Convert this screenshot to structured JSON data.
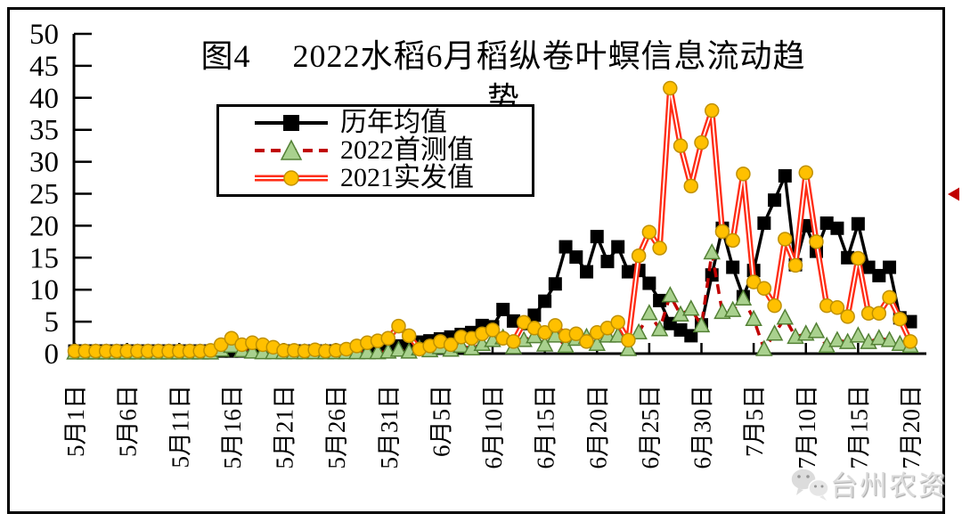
{
  "figure": {
    "title_line1": "图4　 2022水稻6月稻纵卷叶螟信息流动趋",
    "title_line2": "势"
  },
  "watermark": {
    "text": "台州农资",
    "icon": "wechat-icon"
  },
  "annotations": {
    "right_edge_marker": "red left-pointing arrow at right border, value level ~25"
  },
  "chart_data": {
    "type": "line",
    "title": "图4 2022水稻6月稻纵卷叶螟信息流动趋势",
    "x_unit": "date (daily points, 5月1日 — 7月20日)",
    "ylim": [
      0,
      50
    ],
    "y_ticks": [
      0,
      5,
      10,
      15,
      20,
      25,
      30,
      35,
      40,
      45,
      50
    ],
    "x_tick_labels": [
      "5月1日",
      "5月6日",
      "5月11日",
      "5月16日",
      "5月21日",
      "5月26日",
      "5月31日",
      "6月5日",
      "6月10日",
      "6月15日",
      "6月20日",
      "6月25日",
      "6月30日",
      "7月5日",
      "7月10日",
      "7月15日",
      "7月20日"
    ],
    "grid": false,
    "legend_position": "upper-left-inside",
    "series": [
      {
        "name": "历年均值",
        "color": "#000000",
        "line": "solid",
        "marker": "square",
        "marker_fill": "#000000",
        "marker_stroke": "#000000",
        "values": [
          0.4,
          0.4,
          0.4,
          0.4,
          0.4,
          0.4,
          0.4,
          0.4,
          0.4,
          0.4,
          0.4,
          0.4,
          0.4,
          0.4,
          0.4,
          0.4,
          0.4,
          0.4,
          0.4,
          0.4,
          0.4,
          0.4,
          0.4,
          0.4,
          0.4,
          0.4,
          0.4,
          0.4,
          0.5,
          0.8,
          1.0,
          1.2,
          1.5,
          1.8,
          2.0,
          2.3,
          2.6,
          3.0,
          3.3,
          4.4,
          4.2,
          6.9,
          5.1,
          4.7,
          6.0,
          8.2,
          10.9,
          16.7,
          15.1,
          12.8,
          18.3,
          14.4,
          16.7,
          12.8,
          13.0,
          11.0,
          8.3,
          4.7,
          3.7,
          2.8,
          4.5,
          12.3,
          19.6,
          13.5,
          8.9,
          13.0,
          20.4,
          24.0,
          27.8,
          13.9,
          20.0,
          16.0,
          20.4,
          19.6,
          15.0,
          20.3,
          13.5,
          12.2,
          13.5,
          5.6,
          5.0
        ]
      },
      {
        "name": "2022首测值",
        "color": "#C00000",
        "line": "dashed",
        "marker": "triangle",
        "marker_fill": "#A9D18E",
        "marker_stroke": "#538135",
        "values": [
          0.15,
          0.15,
          0.15,
          0.15,
          0.15,
          0.15,
          0.15,
          0.15,
          0.15,
          0.15,
          0.15,
          0.15,
          0.15,
          0.15,
          0.6,
          1.2,
          0.5,
          0.3,
          0.2,
          0.2,
          0.2,
          0.2,
          0.2,
          0.2,
          0.2,
          0.2,
          0.2,
          0.2,
          0.2,
          0.2,
          0.3,
          0.6,
          0.3,
          0.8,
          0.5,
          1.0,
          0.6,
          1.2,
          0.8,
          1.5,
          2.1,
          2.5,
          1.0,
          2.1,
          2.7,
          1.4,
          2.8,
          1.2,
          2.3,
          2.6,
          1.5,
          2.8,
          2.8,
          0.7,
          3.3,
          6.3,
          3.8,
          9.1,
          6.1,
          7.0,
          4.4,
          15.8,
          6.5,
          6.8,
          8.6,
          5.4,
          0.7,
          3.1,
          5.6,
          2.6,
          3.1,
          3.5,
          1.2,
          2.1,
          1.8,
          2.8,
          1.8,
          2.4,
          2.1,
          1.5,
          1.2
        ]
      },
      {
        "name": "2021实发值",
        "color": "#FF2D16",
        "line": "solid-double",
        "marker": "circle",
        "marker_fill": "#FFC000",
        "marker_stroke": "#BF9000",
        "values": [
          0.4,
          0.4,
          0.4,
          0.4,
          0.4,
          0.4,
          0.4,
          0.4,
          0.4,
          0.4,
          0.4,
          0.4,
          0.4,
          0.5,
          1.4,
          2.4,
          1.4,
          1.7,
          1.4,
          1.0,
          0.5,
          0.5,
          0.4,
          0.6,
          0.4,
          0.5,
          0.7,
          1.2,
          1.7,
          2.0,
          2.4,
          4.3,
          2.8,
          0.7,
          1.2,
          1.9,
          1.4,
          2.6,
          2.4,
          3.1,
          3.7,
          2.4,
          1.9,
          4.9,
          4.0,
          3.3,
          4.4,
          2.8,
          3.1,
          1.9,
          3.3,
          4.0,
          4.9,
          2.1,
          15.3,
          19.0,
          16.5,
          41.5,
          32.5,
          26.2,
          33.0,
          38.0,
          19.1,
          17.7,
          28.1,
          11.2,
          10.2,
          7.5,
          17.9,
          13.8,
          28.3,
          17.5,
          7.5,
          7.2,
          5.8,
          14.9,
          6.3,
          6.3,
          8.8,
          5.4,
          1.9
        ]
      }
    ]
  }
}
